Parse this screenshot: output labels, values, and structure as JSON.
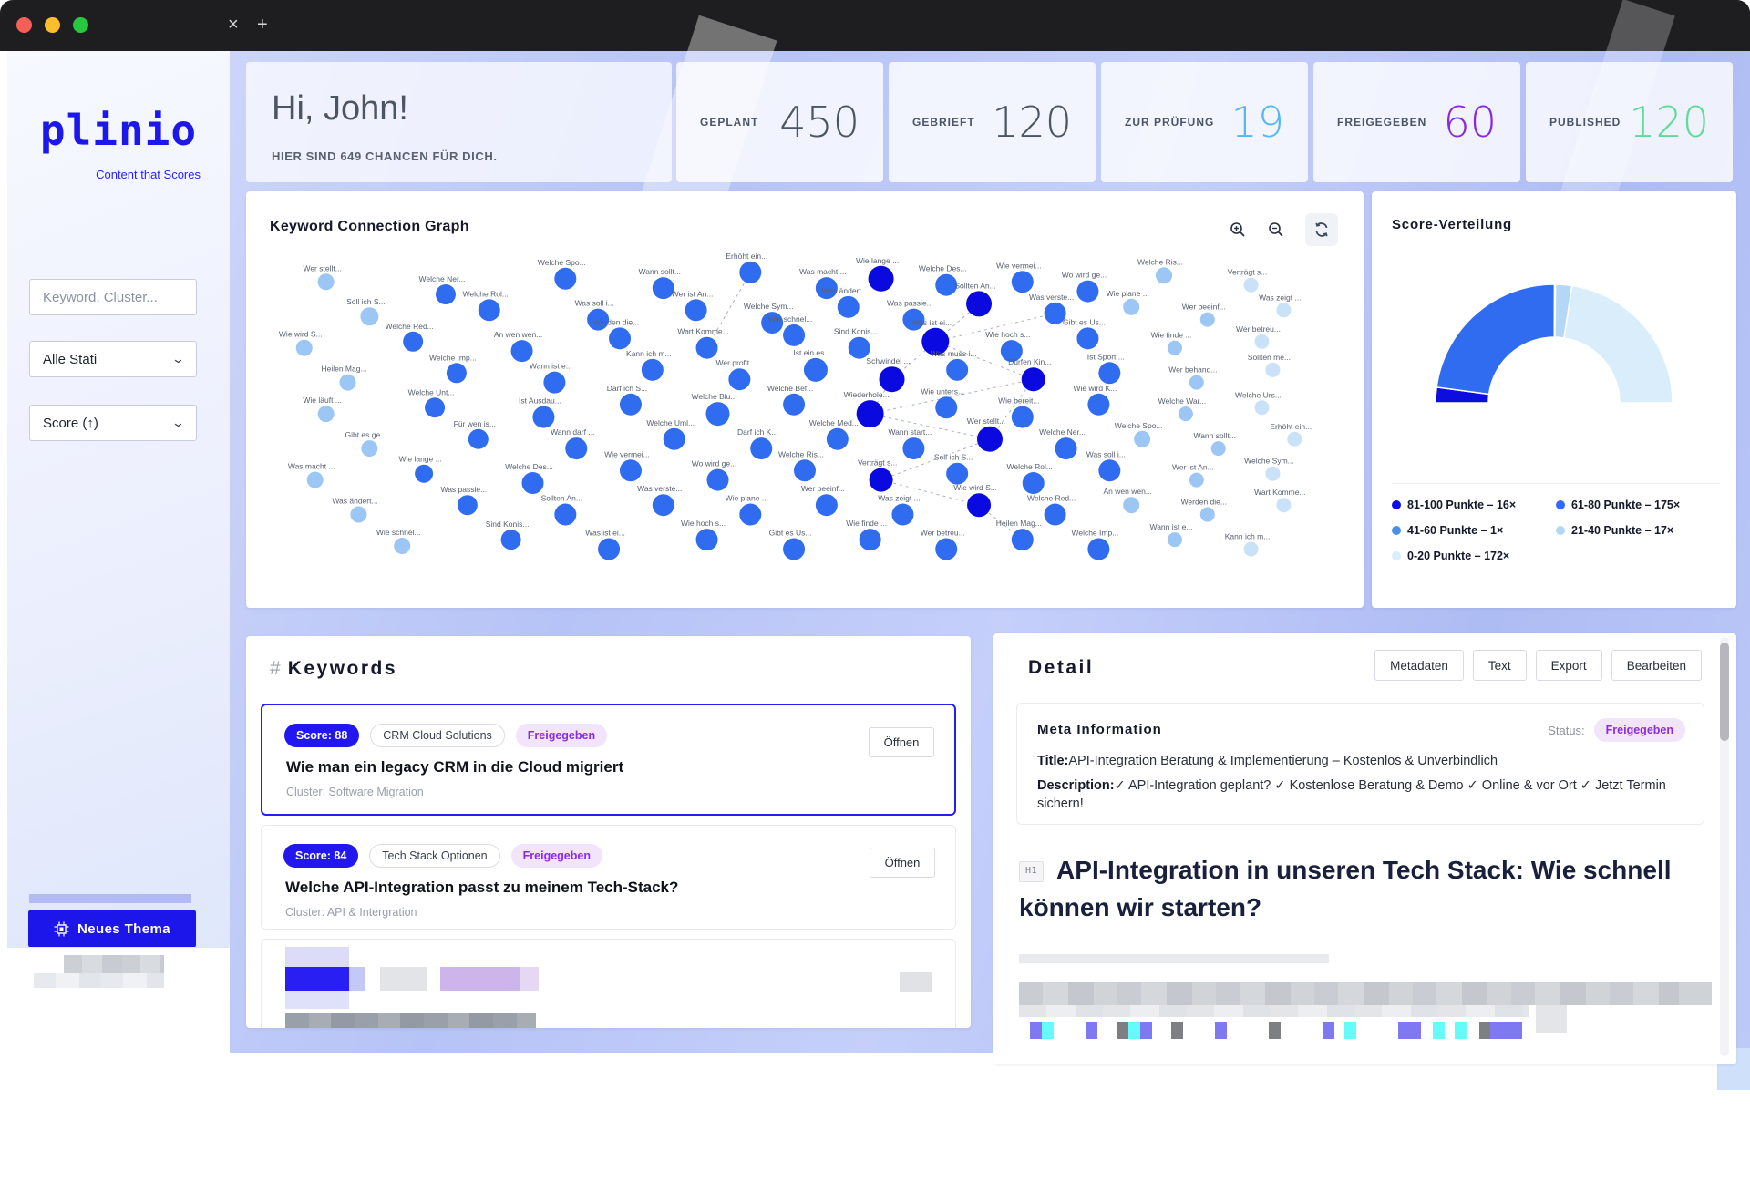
{
  "ui_colors": {
    "accent_blue": "#1d16ea",
    "selected_border": "#2320f0",
    "status_purple": "#8b2be2",
    "bg_lavender": "#b6c3f6"
  },
  "window": {
    "tab_close": "×",
    "tab_new": "+"
  },
  "sidebar": {
    "logo": "plinio",
    "tagline": "Content that Scores",
    "search_placeholder": "Keyword, Cluster...",
    "status_filter": "Alle Stati",
    "sort": "Score (↑)",
    "new_topic": "Neues Thema"
  },
  "greeting": {
    "title": "Hi, John!",
    "subtitle": "HIER SIND 649 CHANCEN FÜR DICH."
  },
  "stats": [
    {
      "label": "GEPLANT",
      "value": "450",
      "color": "#4b5563"
    },
    {
      "label": "GEBRIEFT",
      "value": "120",
      "color": "#4b5563"
    },
    {
      "label": "ZUR PRÜFUNG",
      "value": "19",
      "color": "#56b7f2"
    },
    {
      "label": "FREIGEGEBEN",
      "value": "60",
      "color": "#8928e2"
    },
    {
      "label": "PUBLISHED",
      "value": "120",
      "color": "#5fdb98"
    }
  ],
  "graph": {
    "title": "Keyword Connection Graph",
    "palette": {
      "d": "#0a0ae0",
      "m": "#2f6cf0",
      "l": "#9cc6f3",
      "xl": "#c9e2f8"
    },
    "labels_pool": [
      "Wie wird K...",
      "Wann ist e...",
      "Sollten An...",
      "Wer stellt...",
      "Wie läuft ...",
      "Wie schnel...",
      "Welche Ris...",
      "Welche War...",
      "Kann ich m...",
      "Was verste...",
      "Welche Ner...",
      "Welche Unt...",
      "Sind Konis...",
      "Verträgt s...",
      "Welche Urs...",
      "Wer profit...",
      "Wie plane ...",
      "Welche Spo...",
      "Ist Ausdau...",
      "Was ist ei...",
      "Soll ich S...",
      "Gibt es ge...",
      "Ist ein es...",
      "Wer beeinf...",
      "Wann sollt...",
      "Darf ich S...",
      "Wie hoch s...",
      "Welche Rol...",
      "Für wen is...",
      "Schwindel ...",
      "Was zeigt ...",
      "Erhöht ein...",
      "Welche Blu...",
      "Gibt es Us...",
      "Was soll i...",
      "Wann darf ...",
      "Was muss i...",
      "Wie wird S...",
      "Was macht ...",
      "Welche Bef...",
      "Wie finde ...",
      "Wer ist An...",
      "Welche Uml...",
      "Dürfen Kin...",
      "Welche Red...",
      "Wie lange ...",
      "Wiederhole...",
      "Wer betreu...",
      "Welche Sym...",
      "Darf ich K...",
      "Ist Sport ...",
      "An wen wen...",
      "Welche Des...",
      "Wie unters...",
      "Heilen Mag...",
      "Was ändert...",
      "Welche Med...",
      "Wer behand...",
      "Werden die...",
      "Wie vermei...",
      "Wie bereit...",
      "Welche Imp...",
      "Was passie...",
      "Wann start...",
      "Sollten me...",
      "Wart Komme...",
      "Wo wird ge..."
    ],
    "nodes": [
      [
        6,
        5,
        9,
        "l"
      ],
      [
        17,
        9,
        11,
        "m"
      ],
      [
        28,
        4,
        12,
        "m"
      ],
      [
        37,
        7,
        12,
        "m"
      ],
      [
        45,
        2,
        12,
        "m"
      ],
      [
        52,
        7,
        12,
        "m"
      ],
      [
        57,
        4,
        14,
        "d"
      ],
      [
        63,
        6,
        12,
        "m"
      ],
      [
        70,
        5,
        12,
        "m"
      ],
      [
        76,
        8,
        12,
        "m"
      ],
      [
        83,
        3,
        9,
        "l"
      ],
      [
        91,
        6,
        8,
        "xl"
      ],
      [
        10,
        16,
        10,
        "l"
      ],
      [
        21,
        14,
        12,
        "m"
      ],
      [
        31,
        17,
        12,
        "m"
      ],
      [
        40,
        14,
        12,
        "m"
      ],
      [
        47,
        18,
        12,
        "m"
      ],
      [
        54,
        13,
        12,
        "m"
      ],
      [
        60,
        17,
        12,
        "m"
      ],
      [
        66,
        12,
        14,
        "d"
      ],
      [
        73,
        15,
        12,
        "m"
      ],
      [
        80,
        13,
        9,
        "l"
      ],
      [
        87,
        17,
        8,
        "l"
      ],
      [
        94,
        14,
        8,
        "xl"
      ],
      [
        4,
        26,
        9,
        "l"
      ],
      [
        14,
        24,
        11,
        "m"
      ],
      [
        24,
        27,
        12,
        "m"
      ],
      [
        33,
        23,
        12,
        "m"
      ],
      [
        41,
        26,
        12,
        "m"
      ],
      [
        49,
        22,
        12,
        "m"
      ],
      [
        55,
        26,
        12,
        "m"
      ],
      [
        62,
        24,
        15,
        "d"
      ],
      [
        69,
        27,
        12,
        "m"
      ],
      [
        76,
        23,
        12,
        "m"
      ],
      [
        84,
        26,
        8,
        "l"
      ],
      [
        92,
        24,
        8,
        "xl"
      ],
      [
        8,
        37,
        9,
        "l"
      ],
      [
        18,
        34,
        11,
        "m"
      ],
      [
        27,
        37,
        12,
        "m"
      ],
      [
        36,
        33,
        12,
        "m"
      ],
      [
        44,
        36,
        12,
        "m"
      ],
      [
        51,
        33,
        13,
        "m"
      ],
      [
        58,
        36,
        14,
        "d"
      ],
      [
        64,
        33,
        12,
        "m"
      ],
      [
        71,
        36,
        13,
        "d"
      ],
      [
        78,
        34,
        12,
        "m"
      ],
      [
        86,
        37,
        8,
        "l"
      ],
      [
        93,
        33,
        8,
        "xl"
      ],
      [
        6,
        47,
        9,
        "l"
      ],
      [
        16,
        45,
        11,
        "m"
      ],
      [
        26,
        48,
        12,
        "m"
      ],
      [
        34,
        44,
        12,
        "m"
      ],
      [
        42,
        47,
        13,
        "m"
      ],
      [
        49,
        44,
        12,
        "m"
      ],
      [
        56,
        47,
        15,
        "d"
      ],
      [
        63,
        45,
        12,
        "m"
      ],
      [
        70,
        48,
        12,
        "m"
      ],
      [
        77,
        44,
        12,
        "m"
      ],
      [
        85,
        47,
        8,
        "l"
      ],
      [
        92,
        45,
        8,
        "xl"
      ],
      [
        10,
        58,
        9,
        "l"
      ],
      [
        20,
        55,
        11,
        "m"
      ],
      [
        29,
        58,
        12,
        "m"
      ],
      [
        38,
        55,
        12,
        "m"
      ],
      [
        46,
        58,
        12,
        "m"
      ],
      [
        53,
        55,
        12,
        "m"
      ],
      [
        60,
        58,
        12,
        "m"
      ],
      [
        67,
        55,
        14,
        "d"
      ],
      [
        74,
        58,
        12,
        "m"
      ],
      [
        81,
        55,
        9,
        "l"
      ],
      [
        88,
        58,
        8,
        "l"
      ],
      [
        95,
        55,
        8,
        "xl"
      ],
      [
        5,
        68,
        9,
        "l"
      ],
      [
        15,
        66,
        10,
        "m"
      ],
      [
        25,
        69,
        12,
        "m"
      ],
      [
        34,
        65,
        12,
        "m"
      ],
      [
        42,
        68,
        12,
        "m"
      ],
      [
        50,
        65,
        12,
        "m"
      ],
      [
        57,
        68,
        13,
        "d"
      ],
      [
        64,
        66,
        12,
        "m"
      ],
      [
        71,
        69,
        12,
        "m"
      ],
      [
        78,
        65,
        12,
        "m"
      ],
      [
        86,
        68,
        8,
        "l"
      ],
      [
        93,
        66,
        8,
        "xl"
      ],
      [
        9,
        79,
        9,
        "l"
      ],
      [
        19,
        76,
        11,
        "m"
      ],
      [
        28,
        79,
        12,
        "m"
      ],
      [
        37,
        76,
        12,
        "m"
      ],
      [
        45,
        79,
        12,
        "m"
      ],
      [
        52,
        76,
        12,
        "m"
      ],
      [
        59,
        79,
        12,
        "m"
      ],
      [
        66,
        76,
        13,
        "d"
      ],
      [
        73,
        79,
        12,
        "m"
      ],
      [
        80,
        76,
        9,
        "l"
      ],
      [
        87,
        79,
        8,
        "l"
      ],
      [
        94,
        76,
        8,
        "xl"
      ],
      [
        13,
        89,
        9,
        "l"
      ],
      [
        23,
        87,
        11,
        "m"
      ],
      [
        32,
        90,
        12,
        "m"
      ],
      [
        41,
        87,
        12,
        "m"
      ],
      [
        49,
        90,
        12,
        "m"
      ],
      [
        56,
        87,
        12,
        "m"
      ],
      [
        63,
        90,
        12,
        "m"
      ],
      [
        70,
        87,
        12,
        "m"
      ],
      [
        77,
        90,
        12,
        "m"
      ],
      [
        84,
        87,
        8,
        "l"
      ],
      [
        91,
        90,
        8,
        "xl"
      ]
    ],
    "edges": [
      [
        4,
        28
      ],
      [
        19,
        31
      ],
      [
        20,
        31
      ],
      [
        31,
        42
      ],
      [
        31,
        44
      ],
      [
        42,
        54
      ],
      [
        44,
        54
      ],
      [
        44,
        67
      ],
      [
        54,
        67
      ],
      [
        67,
        78
      ],
      [
        78,
        91
      ],
      [
        91,
        103
      ]
    ]
  },
  "chart_data": {
    "type": "pie",
    "variant": "half-donut-gauge",
    "title": "Score-Verteilung",
    "labels": [
      "81-100 Punkte",
      "61-80 Punkte",
      "41-60 Punkte",
      "21-40 Punkte",
      "0-20 Punkte"
    ],
    "values": [
      16,
      175,
      1,
      17,
      172
    ],
    "counts_suffix": "×",
    "colors": [
      "#0d0de0",
      "#2f6cf0",
      "#4a90e8",
      "#b4d7f6",
      "#d9edfb"
    ],
    "legend_position": "bottom"
  },
  "score_panel": {
    "title": "Score-Verteilung",
    "legend": [
      {
        "label": "81-100 Punkte – 16×",
        "color": "#0d0de0"
      },
      {
        "label": "61-80 Punkte – 175×",
        "color": "#2f6cf0"
      },
      {
        "label": "41-60 Punkte – 1×",
        "color": "#4a90e8"
      },
      {
        "label": "21-40 Punkte – 17×",
        "color": "#b4d7f6"
      },
      {
        "label": "0-20 Punkte – 172×",
        "color": "#d9edfb"
      }
    ]
  },
  "keywords": {
    "hash": "#",
    "heading": "Keywords",
    "open_label": "Öffnen",
    "items": [
      {
        "score": "Score: 88",
        "tag": "CRM Cloud Solutions",
        "status": "Freigegeben",
        "title": "Wie man ein legacy CRM in die Cloud migriert",
        "cluster": "Cluster: Software Migration",
        "selected": true
      },
      {
        "score": "Score: 84",
        "tag": "Tech Stack Optionen",
        "status": "Freigegeben",
        "title": "Welche API-Integration passt zu meinem Tech-Stack?",
        "cluster": "Cluster: API & Intergration",
        "selected": false
      }
    ]
  },
  "detail": {
    "title": "Detail",
    "buttons": [
      "Metadaten",
      "Text",
      "Export",
      "Bearbeiten"
    ],
    "meta": {
      "heading": "Meta Information",
      "status_label": "Status:",
      "status": "Freigegeben",
      "title_label": "Title:",
      "title_text": "API-Integration Beratung & Implementierung – Kostenlos & Unverbindlich",
      "description_label": "Description:",
      "description_text": "✓ API-Integration geplant? ✓ Kostenlose Beratung & Demo ✓ Online & vor Ort ✓ Jetzt Termin sichern!"
    },
    "h1_badge": "H1",
    "h1": "API-Integration in unseren Tech Stack: Wie schnell können wir starten?",
    "strip_colors": {
      "v": "#7e79f2",
      "c": "#66fbfb",
      "g": "#7e7f83"
    },
    "color_strip": [
      [
        "v",
        13,
        0
      ],
      [
        "c",
        13,
        0
      ],
      [
        "v",
        13,
        35
      ],
      [
        "g",
        13,
        21
      ],
      [
        "c",
        13,
        0
      ],
      [
        "v",
        13,
        0
      ],
      [
        "g",
        13,
        21
      ],
      [
        "v",
        13,
        35
      ],
      [
        "g",
        13,
        46
      ],
      [
        "v",
        13,
        46
      ],
      [
        "c",
        13,
        11
      ],
      [
        "v",
        25,
        46
      ],
      [
        "c",
        13,
        13
      ],
      [
        "c",
        13,
        11
      ],
      [
        "g",
        12,
        14
      ],
      [
        "v",
        35,
        0
      ]
    ]
  }
}
